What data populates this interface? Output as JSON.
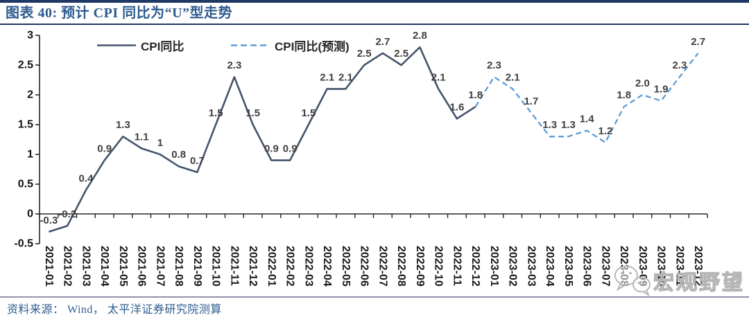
{
  "header": {
    "title": "图表 40:  预计 CPI 同比为“U”型走势"
  },
  "footer": {
    "source": "资料来源：  Wind，  太平洋证券研究院测算"
  },
  "watermark": {
    "label": "宏观野望",
    "icon": "wechat-icon"
  },
  "colors": {
    "rule": "#1f3864",
    "title_text": "#2d5b8e",
    "actual_line": "#44546A",
    "forecast_line": "#5B9BD5",
    "data_label": "#404040",
    "axis": "#262626",
    "footer_rule": "#9191ad"
  },
  "chart_data": {
    "type": "line",
    "x": [
      "2021-01",
      "2021-02",
      "2021-03",
      "2021-04",
      "2021-05",
      "2021-06",
      "2021-07",
      "2021-08",
      "2021-09",
      "2021-10",
      "2021-11",
      "2021-12",
      "2022-01",
      "2022-02",
      "2022-03",
      "2022-04",
      "2022-05",
      "2022-06",
      "2022-07",
      "2022-08",
      "2022-09",
      "2022-10",
      "2022-11",
      "2022-12",
      "2023-01",
      "2023-02",
      "2023-03",
      "2023-04",
      "2023-05",
      "2023-06",
      "2023-07",
      "2023-08",
      "2023-09",
      "2023-10",
      "2023-11",
      "2023-12"
    ],
    "series": [
      {
        "name": "CPI同比",
        "style": "solid",
        "color": "#44546A",
        "start_index": 0,
        "values": [
          -0.3,
          -0.2,
          0.4,
          0.9,
          1.3,
          1.1,
          1.0,
          0.8,
          0.7,
          1.5,
          2.3,
          1.5,
          0.9,
          0.9,
          1.5,
          2.1,
          2.1,
          2.5,
          2.7,
          2.5,
          2.8,
          2.1,
          1.6,
          1.8
        ]
      },
      {
        "name": "CPI同比(预测)",
        "style": "dashed",
        "color": "#5B9BD5",
        "start_index": 23,
        "values": [
          1.8,
          2.3,
          2.1,
          1.7,
          1.3,
          1.3,
          1.4,
          1.2,
          1.8,
          2.0,
          1.9,
          2.3,
          2.7
        ]
      }
    ],
    "point_labels": [
      "-0.3",
      "-0.2",
      "0.4",
      "0.9",
      "1.3",
      "1.1",
      "1",
      "0.8",
      "0.7",
      "1.5",
      "2.3",
      "1.5",
      "0.9",
      "0.9",
      "1.5",
      "2.1",
      "2.1",
      "2.5",
      "2.7",
      "2.5",
      "2.8",
      "2.1",
      "1.6",
      "1.8",
      "2.3",
      "2.1",
      "1.7",
      "1.3",
      "1.3",
      "1.4",
      "1.2",
      "1.8",
      "2.0",
      "1.9",
      "2.3",
      "2.7"
    ],
    "ylim": [
      -0.5,
      3
    ],
    "yticks": [
      {
        "v": 3,
        "label": "3"
      },
      {
        "v": 2.5,
        "label": "2.5"
      },
      {
        "v": 2,
        "label": "2"
      },
      {
        "v": 1.5,
        "label": "1.5"
      },
      {
        "v": 1,
        "label": "1"
      },
      {
        "v": 0.5,
        "label": "0.5"
      },
      {
        "v": 0,
        "label": "0"
      },
      {
        "v": -0.5,
        "label": "-0.5"
      }
    ],
    "grid": false,
    "legend_position": "top-inside"
  }
}
